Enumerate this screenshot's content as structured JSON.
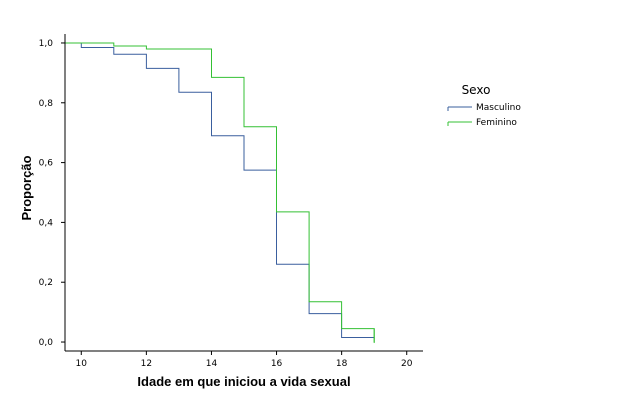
{
  "chart_data": {
    "type": "line",
    "step": true,
    "xlabel": "Idade em que iniciou a vida sexual",
    "ylabel": "Proporção",
    "xlim": [
      9.5,
      20.5
    ],
    "ylim": [
      -0.03,
      1.03
    ],
    "x_ticks": [
      10,
      12,
      14,
      16,
      18,
      20
    ],
    "x_tick_labels": [
      "10",
      "12",
      "14",
      "16",
      "18",
      "20"
    ],
    "y_ticks": [
      0,
      0.2,
      0.4,
      0.6,
      0.8,
      1.0
    ],
    "y_tick_labels": [
      "0,0",
      "0,2",
      "0,4",
      "0,6",
      "0,8",
      "1,0"
    ],
    "grid": false,
    "legend": {
      "title": "Sexo",
      "position": "right"
    },
    "series": [
      {
        "name": "Masculino",
        "color": "#3a5f9e",
        "x": [
          9.5,
          10,
          11,
          12,
          13,
          14,
          15,
          16,
          17,
          18,
          19
        ],
        "y": [
          1.0,
          0.985,
          0.962,
          0.915,
          0.835,
          0.69,
          0.575,
          0.26,
          0.095,
          0.015,
          0.015
        ]
      },
      {
        "name": "Feminino",
        "color": "#34c034",
        "x": [
          9.5,
          11,
          12,
          14,
          15,
          16,
          17,
          18,
          19
        ],
        "y": [
          1.0,
          0.99,
          0.98,
          0.885,
          0.72,
          0.435,
          0.135,
          0.045,
          0.0
        ]
      }
    ]
  }
}
